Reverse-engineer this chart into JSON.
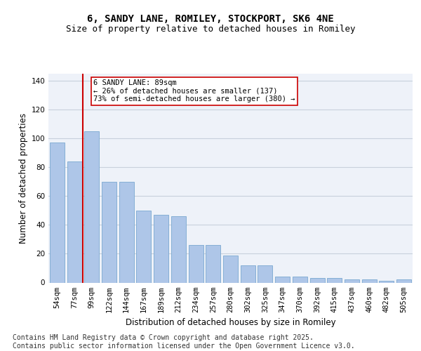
{
  "title": "6, SANDY LANE, ROMILEY, STOCKPORT, SK6 4NE",
  "subtitle": "Size of property relative to detached houses in Romiley",
  "xlabel": "Distribution of detached houses by size in Romiley",
  "ylabel": "Number of detached properties",
  "categories": [
    "54sqm",
    "77sqm",
    "99sqm",
    "122sqm",
    "144sqm",
    "167sqm",
    "189sqm",
    "212sqm",
    "234sqm",
    "257sqm",
    "280sqm",
    "302sqm",
    "325sqm",
    "347sqm",
    "370sqm",
    "392sqm",
    "415sqm",
    "437sqm",
    "460sqm",
    "482sqm",
    "505sqm"
  ],
  "values": [
    97,
    84,
    105,
    70,
    70,
    50,
    47,
    46,
    26,
    26,
    19,
    12,
    12,
    4,
    4,
    3,
    3,
    2,
    2,
    1,
    2
  ],
  "bar_color": "#aec6e8",
  "bar_edge_color": "#7aa8d0",
  "vline_color": "#cc0000",
  "annotation_text": "6 SANDY LANE: 89sqm\n← 26% of detached houses are smaller (137)\n73% of semi-detached houses are larger (380) →",
  "annotation_box_color": "white",
  "annotation_box_edge": "#cc0000",
  "ylim": [
    0,
    145
  ],
  "yticks": [
    0,
    20,
    40,
    60,
    80,
    100,
    120,
    140
  ],
  "background_color": "#eef2f9",
  "grid_color": "#c8d0dc",
  "footer": "Contains HM Land Registry data © Crown copyright and database right 2025.\nContains public sector information licensed under the Open Government Licence v3.0.",
  "title_fontsize": 10,
  "subtitle_fontsize": 9,
  "xlabel_fontsize": 8.5,
  "ylabel_fontsize": 8.5,
  "footer_fontsize": 7,
  "tick_fontsize": 7.5,
  "annot_fontsize": 7.5
}
